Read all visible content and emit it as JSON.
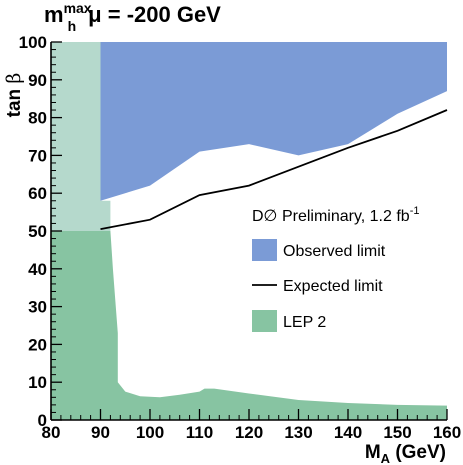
{
  "chart_data": {
    "type": "area",
    "title": {
      "main": "m",
      "superscript": "max",
      "subscript": "h",
      "rest": "μ = -200 GeV"
    },
    "xlabel": {
      "main": "M",
      "subscript": "A",
      "rest": " (GeV)"
    },
    "ylabel": {
      "main": "tan ",
      "greek": "β"
    },
    "xlim": [
      80,
      160
    ],
    "ylim": [
      0,
      100
    ],
    "x_ticks": [
      80,
      90,
      100,
      110,
      120,
      130,
      140,
      150,
      160
    ],
    "y_ticks": [
      0,
      10,
      20,
      30,
      40,
      50,
      60,
      70,
      80,
      90,
      100
    ],
    "grid": false,
    "legend": {
      "placement": "right",
      "header": {
        "text": "D∅ Preliminary, 1.2 fb",
        "superscript": "-1"
      },
      "items": [
        {
          "label": "Observed limit",
          "marker": "box",
          "color": "#7b9bd6"
        },
        {
          "label": "Expected limit",
          "marker": "line",
          "color": "#000000"
        },
        {
          "label": "LEP 2",
          "marker": "box",
          "color": "#87c4a2"
        }
      ]
    },
    "series": [
      {
        "name": "Observed limit",
        "kind": "excluded-region-above",
        "color": "#7b9bd6",
        "boundary": [
          [
            90,
            58
          ],
          [
            100,
            62
          ],
          [
            110,
            71
          ],
          [
            120,
            73
          ],
          [
            130,
            70
          ],
          [
            140,
            73
          ],
          [
            150,
            81
          ],
          [
            160,
            87
          ]
        ]
      },
      {
        "name": "Expected limit",
        "kind": "line",
        "color": "#000000",
        "points": [
          [
            90,
            50.5
          ],
          [
            100,
            53
          ],
          [
            110,
            59.5
          ],
          [
            120,
            62
          ],
          [
            130,
            67
          ],
          [
            140,
            72
          ],
          [
            150,
            76.5
          ],
          [
            160,
            82
          ]
        ]
      },
      {
        "name": "LEP 2",
        "kind": "excluded-region",
        "color": "#87c4a2",
        "boundary": [
          [
            80,
            50
          ],
          [
            92,
            50
          ],
          [
            92.5,
            40
          ],
          [
            93.5,
            23
          ],
          [
            93.5,
            10
          ],
          [
            95,
            7.5
          ],
          [
            98,
            6.3
          ],
          [
            102,
            6
          ],
          [
            106,
            6.7
          ],
          [
            110,
            7.5
          ],
          [
            111,
            8.3
          ],
          [
            113,
            8.3
          ],
          [
            120,
            7
          ],
          [
            130,
            5.3
          ],
          [
            140,
            4.5
          ],
          [
            150,
            4
          ],
          [
            160,
            3.8
          ],
          [
            160,
            0
          ],
          [
            80,
            0
          ]
        ]
      },
      {
        "name": "",
        "kind": "excluded-region",
        "color": "#b5d9cc",
        "boundary": [
          [
            80,
            100
          ],
          [
            90,
            100
          ],
          [
            90,
            58
          ],
          [
            92,
            58
          ],
          [
            92,
            50
          ],
          [
            80,
            50
          ]
        ]
      }
    ]
  }
}
